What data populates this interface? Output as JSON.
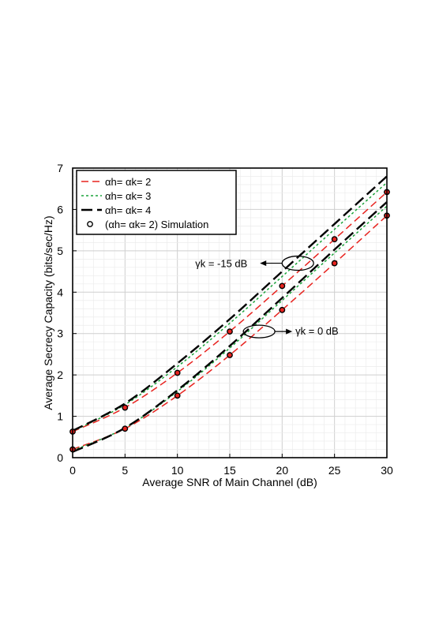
{
  "chart_data": {
    "type": "line",
    "xlabel": "Average SNR of Main Channel (dB)",
    "ylabel": "Average Secrecy Capacity (bits/sec/Hz)",
    "xlim": [
      0,
      30
    ],
    "ylim": [
      0,
      7
    ],
    "xticks": [
      "0",
      "5",
      "10",
      "15",
      "20",
      "25",
      "30"
    ],
    "yticks": [
      "0",
      "1",
      "2",
      "3",
      "4",
      "5",
      "6",
      "7"
    ],
    "grid": true,
    "legend_position": "top-left",
    "x": [
      0,
      5,
      10,
      15,
      20,
      25,
      30
    ],
    "series": [
      {
        "name": "αh= αk= 2",
        "style": "dashed",
        "color": "#e8231f",
        "group": "γk = -15 dB",
        "values": [
          0.63,
          1.21,
          2.05,
          3.05,
          4.15,
          5.28,
          6.42
        ]
      },
      {
        "name": "αh= αk= 3",
        "style": "dotted",
        "color": "#1aa33a",
        "group": "γk = -15 dB",
        "values": [
          0.64,
          1.28,
          2.2,
          3.25,
          4.38,
          5.52,
          6.65
        ]
      },
      {
        "name": "αh= αk= 4",
        "style": "longdash",
        "color": "#000000",
        "group": "γk = -15 dB",
        "values": [
          0.65,
          1.31,
          2.28,
          3.35,
          4.5,
          5.65,
          6.8
        ]
      },
      {
        "name": "αh= αk= 2",
        "style": "dashed",
        "color": "#e8231f",
        "group": "γk = 0 dB",
        "values": [
          0.2,
          0.7,
          1.5,
          2.48,
          3.57,
          4.7,
          5.85
        ]
      },
      {
        "name": "αh= αk= 3",
        "style": "dotted",
        "color": "#1aa33a",
        "group": "γk = 0 dB",
        "values": [
          0.17,
          0.72,
          1.6,
          2.65,
          3.8,
          4.95,
          6.08
        ]
      },
      {
        "name": "αh= αk= 4",
        "style": "longdash",
        "color": "#000000",
        "group": "γk = 0 dB",
        "values": [
          0.14,
          0.72,
          1.63,
          2.7,
          3.86,
          5.03,
          6.18
        ]
      },
      {
        "name": "(αh= αk= 2) Simulation",
        "style": "markers",
        "color": "#e8231f",
        "group": "γk = -15 dB",
        "values": [
          0.63,
          1.21,
          2.05,
          3.05,
          4.15,
          5.28,
          6.42
        ]
      },
      {
        "name": "(αh= αk= 2) Simulation",
        "style": "markers",
        "color": "#e8231f",
        "group": "γk = 0 dB",
        "values": [
          0.2,
          0.7,
          1.5,
          2.48,
          3.57,
          4.7,
          5.85
        ]
      }
    ],
    "legend": [
      {
        "label": "αh= αk= 2",
        "style": "dashed",
        "color": "#e8231f"
      },
      {
        "label": "αh= αk= 3",
        "style": "dotted",
        "color": "#1aa33a"
      },
      {
        "label": "αh= αk= 4",
        "style": "longdash",
        "color": "#000000"
      },
      {
        "label": "(αh= αk= 2) Simulation",
        "style": "markers",
        "color": "#000000"
      }
    ],
    "annotations": [
      {
        "text": "γk = -15 dB",
        "ellipse_at": [
          21.5,
          4.7
        ]
      },
      {
        "text": "γk = 0 dB",
        "ellipse_at": [
          17.8,
          3.05
        ]
      }
    ]
  }
}
